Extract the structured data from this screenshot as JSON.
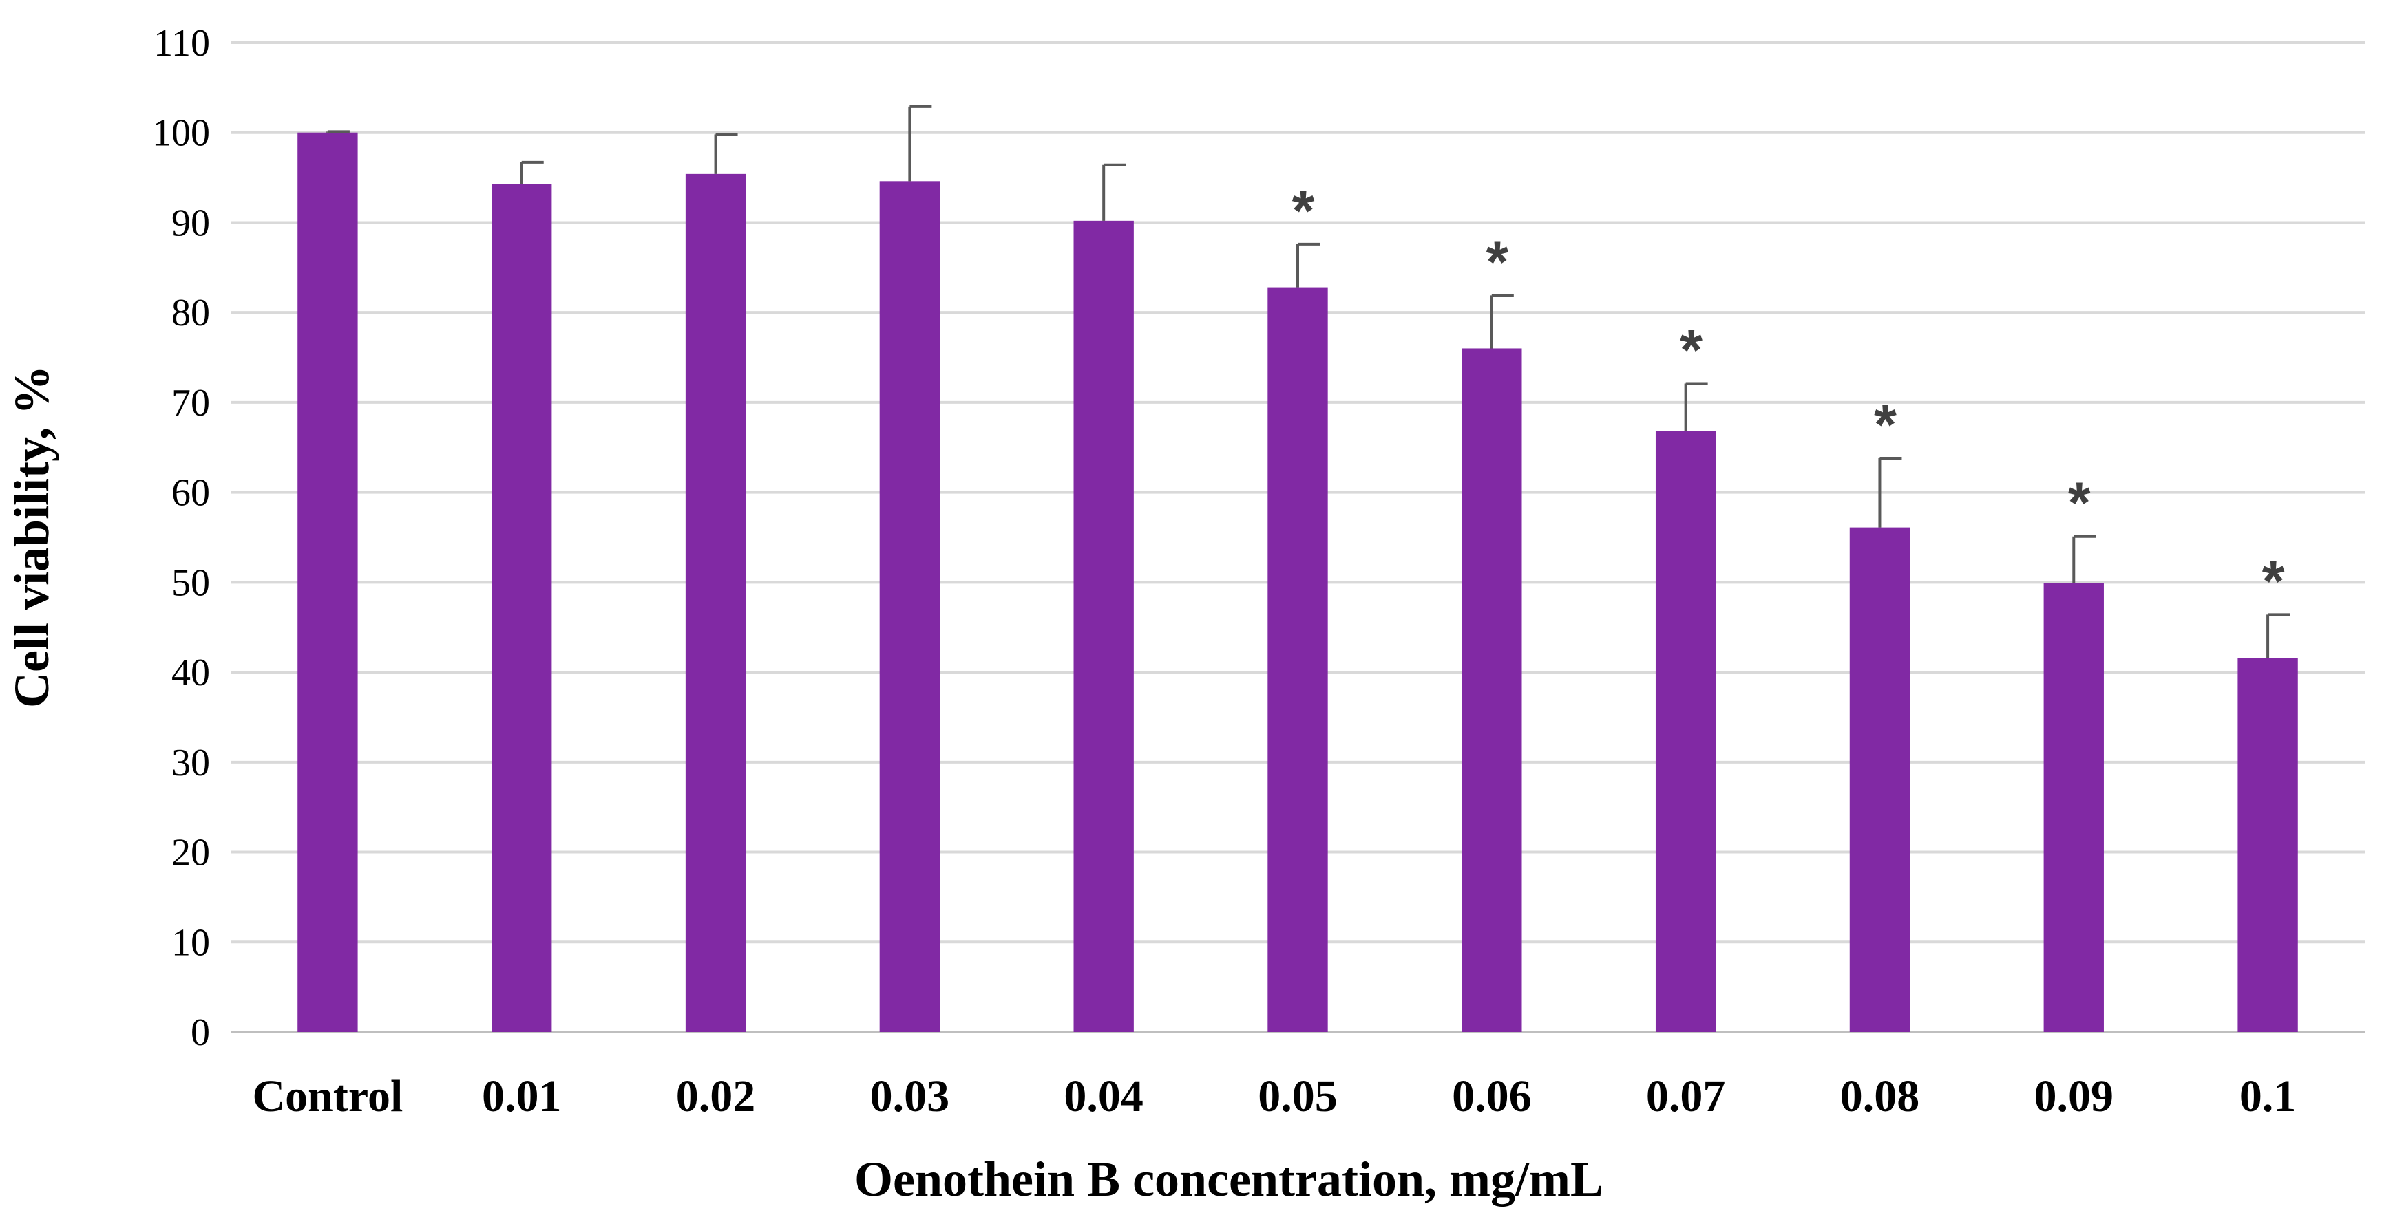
{
  "chart_data": {
    "type": "bar",
    "title": "",
    "xlabel": "Oenothein B concentration, mg/mL",
    "ylabel": "Cell viability, %",
    "ylim": [
      0,
      110
    ],
    "yticks": [
      0,
      10,
      20,
      30,
      40,
      50,
      60,
      70,
      80,
      90,
      100,
      110
    ],
    "grid": true,
    "categories": [
      "Control",
      "0.01",
      "0.02",
      "0.03",
      "0.04",
      "0.05",
      "0.06",
      "0.07",
      "0.08",
      "0.09",
      "0.1"
    ],
    "series": [
      {
        "name": "Cell viability",
        "values": [
          100,
          94.3,
          95.4,
          94.6,
          90.2,
          82.8,
          76.0,
          66.8,
          56.1,
          49.9,
          41.6
        ],
        "errors": [
          0.1,
          2.4,
          4.4,
          8.3,
          6.2,
          4.8,
          5.9,
          5.3,
          7.7,
          5.2,
          4.8
        ],
        "significant": [
          false,
          false,
          false,
          false,
          false,
          true,
          true,
          true,
          true,
          true,
          true
        ],
        "color": "#8129a4"
      }
    ],
    "significance_marker": "*",
    "gridline_color": "#d9d9d9",
    "errorbar_color": "#595959"
  }
}
